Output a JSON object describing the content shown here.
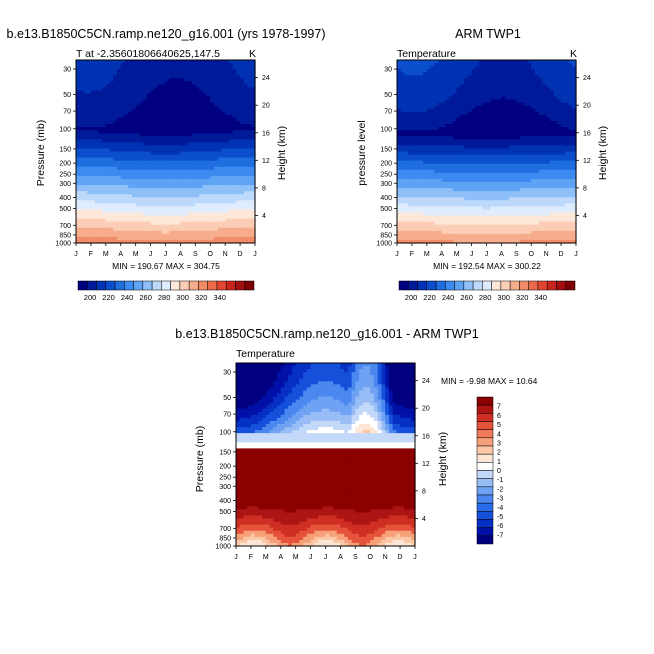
{
  "colors": {
    "temp_scale": [
      "#000080",
      "#001a9a",
      "#0033b3",
      "#0b4fcc",
      "#1f6ee0",
      "#3d8af0",
      "#5fa3f5",
      "#8ebff8",
      "#bcd8fb",
      "#dfecfd",
      "#fde7d8",
      "#fbcdb4",
      "#f7ad8c",
      "#f28c68",
      "#ec6a4a",
      "#e0462f",
      "#c8261c",
      "#a30f10",
      "#7f0000"
    ],
    "diff_scale": [
      "#000080",
      "#0011a8",
      "#0630c4",
      "#1550da",
      "#2a6ce8",
      "#4a88ef",
      "#6fa2f3",
      "#98bcf6",
      "#c4d8fa",
      "#ffffff",
      "#fde6d5",
      "#fbc7a5",
      "#f6a07a",
      "#f07a57",
      "#e5543a",
      "#cf2e22",
      "#ad1414",
      "#8b0000"
    ]
  },
  "figure": {
    "panels": [
      {
        "title": "b.e13.B1850C5CN.ramp.ne120_g16.001 (yrs 1978-1997)",
        "left_label": "T at -2.35601806640625,147.5",
        "unit": "K",
        "ylabel": "Pressure (mb)",
        "ylabel_right": "Height (km)",
        "minmax": "MIN = 190.67 MAX = 304.75"
      },
      {
        "title": "ARM TWP1",
        "left_label": "Temperature",
        "unit": "K",
        "ylabel": "pressure level",
        "ylabel_right": "Height (km)",
        "minmax": "MIN = 192.54 MAX = 300.22"
      },
      {
        "title": "b.e13.B1850C5CN.ramp.ne120_g16.001 - ARM TWP1",
        "left_label": "Temperature",
        "ylabel": "Pressure (mb)",
        "ylabel_right": "Height (km)",
        "minmax": "MIN = -9.98 MAX = 10.64"
      }
    ],
    "temp_colorbar_labels": [
      "200",
      "220",
      "240",
      "260",
      "280",
      "300",
      "320",
      "340"
    ],
    "diff_colorbar_labels": [
      "7",
      "6",
      "5",
      "4",
      "3",
      "2",
      "1",
      "0",
      "-1",
      "-2",
      "-3",
      "-4",
      "-5",
      "-6",
      "-7"
    ]
  },
  "chart_data": [
    {
      "type": "heatmap",
      "title": "b.e13.B1850C5CN.ramp.ne120_g16.001 (yrs 1978-1997)",
      "subtitle": "T at -2.35601806640625,147.5",
      "unit": "K",
      "x": [
        "J",
        "F",
        "M",
        "A",
        "M",
        "J",
        "J",
        "A",
        "S",
        "O",
        "N",
        "D",
        "J"
      ],
      "y_ticks": [
        "30",
        "50",
        "70",
        "100",
        "150",
        "200",
        "250",
        "300",
        "400",
        "500",
        "700",
        "850",
        "1000"
      ],
      "y_ticks_right": [
        "24",
        "20",
        "16",
        "12",
        "8",
        "4"
      ],
      "ylabel": "Pressure (mb)",
      "ylabel_right": "Height (km)",
      "min": 190.67,
      "max": 304.75,
      "levels": [
        200,
        220,
        240,
        260,
        280,
        300,
        320,
        340
      ]
    },
    {
      "type": "heatmap",
      "title": "ARM TWP1",
      "subtitle": "Temperature",
      "unit": "K",
      "x": [
        "J",
        "F",
        "M",
        "A",
        "M",
        "J",
        "J",
        "A",
        "S",
        "O",
        "N",
        "D",
        "J"
      ],
      "y_ticks": [
        "30",
        "50",
        "70",
        "100",
        "150",
        "200",
        "250",
        "300",
        "400",
        "500",
        "700",
        "850",
        "1000"
      ],
      "y_ticks_right": [
        "24",
        "20",
        "16",
        "12",
        "8",
        "4"
      ],
      "ylabel": "pressure level",
      "ylabel_right": "Height (km)",
      "min": 192.54,
      "max": 300.22,
      "levels": [
        200,
        220,
        240,
        260,
        280,
        300,
        320,
        340
      ]
    },
    {
      "type": "heatmap",
      "title": "b.e13.B1850C5CN.ramp.ne120_g16.001 - ARM TWP1",
      "subtitle": "Temperature",
      "x": [
        "J",
        "F",
        "M",
        "A",
        "M",
        "J",
        "J",
        "A",
        "S",
        "O",
        "N",
        "D",
        "J"
      ],
      "y_ticks": [
        "30",
        "50",
        "70",
        "100",
        "150",
        "200",
        "250",
        "300",
        "400",
        "500",
        "700",
        "850",
        "1000"
      ],
      "y_ticks_right": [
        "24",
        "20",
        "16",
        "12",
        "8",
        "4"
      ],
      "ylabel": "Pressure (mb)",
      "ylabel_right": "Height (km)",
      "min": -9.98,
      "max": 10.64,
      "levels": [
        -7,
        -6,
        -5,
        -4,
        -3,
        -2,
        -1,
        0,
        1,
        2,
        3,
        4,
        5,
        6,
        7
      ]
    }
  ]
}
